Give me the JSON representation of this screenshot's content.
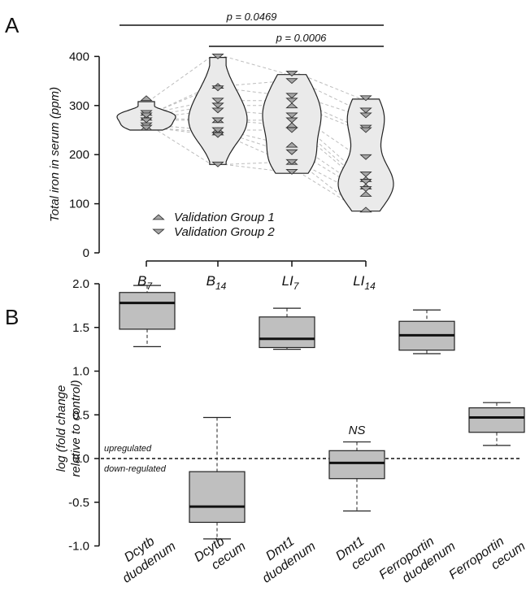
{
  "chart_data": [
    {
      "panel": "A",
      "type": "violin",
      "ylabel": "Total iron in serum (ppm)",
      "ylim": [
        0,
        400
      ],
      "yticks": [
        0,
        100,
        200,
        300,
        400
      ],
      "categories": [
        {
          "base": "B",
          "sub": "7"
        },
        {
          "base": "B",
          "sub": "14"
        },
        {
          "base": "LI",
          "sub": "7"
        },
        {
          "base": "LI",
          "sub": "14"
        }
      ],
      "legend": [
        {
          "label": "Validation Group 1",
          "marker": "triangle-up"
        },
        {
          "label": "Validation Group 2",
          "marker": "triangle-down"
        }
      ],
      "legend_position": "bottom-left",
      "significance": [
        {
          "from": 0,
          "to": 3,
          "label": "p = 0.0469"
        },
        {
          "from": 1,
          "to": 3,
          "label": "p = 0.0006"
        }
      ],
      "violin_range": [
        [
          250,
          308
        ],
        [
          180,
          398
        ],
        [
          162,
          363
        ],
        [
          85,
          313
        ]
      ],
      "series": [
        {
          "name": "Validation Group 1",
          "marker": "triangle-up",
          "values": [
            [
              315,
              285,
              275,
              255
            ],
            [
              340,
              270,
              250,
              245
            ],
            [
              300,
              260,
              220,
              185
            ],
            [
              150,
              135,
              120,
              88
            ]
          ]
        },
        {
          "name": "Validation Group 2",
          "marker": "triangle-down",
          "values": [
            [
              285,
              280,
              270,
              260,
              255
            ],
            [
              400,
              335,
              310,
              300,
              290,
              270,
              250,
              240,
              180
            ],
            [
              365,
              350,
              320,
              310,
              280,
              270,
              250,
              205,
              185,
              165
            ],
            [
              315,
              290,
              280,
              255,
              250,
              195,
              160,
              145,
              130
            ]
          ]
        }
      ],
      "colors": {
        "violin_fill": "#eaeaea",
        "marker_fill": "#a6a6a6",
        "paired_line": "#bdbdbd"
      }
    },
    {
      "panel": "B",
      "type": "box",
      "ylabel_lines": [
        "log (fold change",
        "relative to control)"
      ],
      "ylim": [
        -1.0,
        2.0
      ],
      "yticks": [
        "2.0",
        "1.5",
        "1.0",
        "0.5",
        "0.0",
        "-0.5",
        "-1.0"
      ],
      "categories": [
        [
          "Dcytb",
          "duodenum"
        ],
        [
          "Dcytb",
          "cecum"
        ],
        [
          "Dmt1",
          "duodenum"
        ],
        [
          "Dmt1",
          "cecum"
        ],
        [
          "Ferroportin",
          "duodenum"
        ],
        [
          "Ferroportin",
          "cecum"
        ]
      ],
      "boxes": [
        {
          "min": 1.28,
          "q1": 1.48,
          "median": 1.78,
          "q3": 1.9,
          "max": 1.98
        },
        {
          "min": -0.92,
          "q1": -0.73,
          "median": -0.55,
          "q3": -0.15,
          "max": 0.47
        },
        {
          "min": 1.25,
          "q1": 1.27,
          "median": 1.37,
          "q3": 1.62,
          "max": 1.72
        },
        {
          "min": -0.6,
          "q1": -0.23,
          "median": -0.05,
          "q3": 0.09,
          "max": 0.19
        },
        {
          "min": 1.2,
          "q1": 1.24,
          "median": 1.41,
          "q3": 1.57,
          "max": 1.7
        },
        {
          "min": 0.15,
          "q1": 0.3,
          "median": 0.47,
          "q3": 0.58,
          "max": 0.64
        }
      ],
      "reference_line": {
        "y": 0.0,
        "above_label": "upregulated",
        "below_label": "down-regulated"
      },
      "annotations": [
        {
          "category_index": 3,
          "text": "NS"
        }
      ],
      "colors": {
        "box_fill": "#bfbfbf"
      }
    }
  ]
}
